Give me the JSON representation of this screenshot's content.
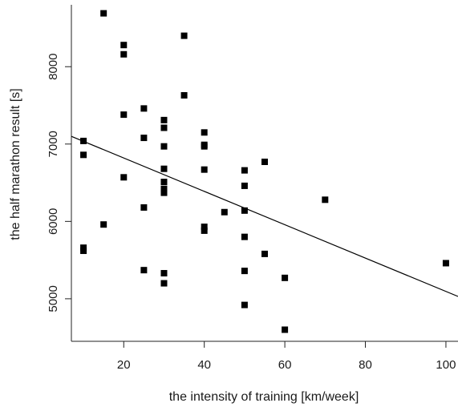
{
  "chart_data": {
    "type": "scatter",
    "title": "",
    "xlabel": "the intensity of training [km/week]",
    "ylabel": "the half marathon result [s]",
    "xlim": [
      7,
      103
    ],
    "ylim": [
      4450,
      8800
    ],
    "x_ticks": [
      20,
      40,
      60,
      80,
      100
    ],
    "y_ticks": [
      5000,
      6000,
      7000,
      8000
    ],
    "x_tick_labels": [
      "20",
      "40",
      "60",
      "80",
      "100"
    ],
    "y_tick_labels": [
      "5000",
      "6000",
      "7000",
      "8000"
    ],
    "marker": "square",
    "marker_color": "#000000",
    "grid": false,
    "points": [
      {
        "x": 10,
        "y": 7040
      },
      {
        "x": 10,
        "y": 6860
      },
      {
        "x": 10,
        "y": 5660
      },
      {
        "x": 10,
        "y": 5620
      },
      {
        "x": 15,
        "y": 8690
      },
      {
        "x": 15,
        "y": 5960
      },
      {
        "x": 20,
        "y": 8280
      },
      {
        "x": 20,
        "y": 8160
      },
      {
        "x": 20,
        "y": 7380
      },
      {
        "x": 20,
        "y": 6570
      },
      {
        "x": 25,
        "y": 7460
      },
      {
        "x": 25,
        "y": 7080
      },
      {
        "x": 25,
        "y": 6180
      },
      {
        "x": 25,
        "y": 5370
      },
      {
        "x": 30,
        "y": 7310
      },
      {
        "x": 30,
        "y": 7210
      },
      {
        "x": 30,
        "y": 6970
      },
      {
        "x": 30,
        "y": 6680
      },
      {
        "x": 30,
        "y": 6510
      },
      {
        "x": 30,
        "y": 6420
      },
      {
        "x": 30,
        "y": 6370
      },
      {
        "x": 30,
        "y": 5330
      },
      {
        "x": 30,
        "y": 5200
      },
      {
        "x": 35,
        "y": 8400
      },
      {
        "x": 35,
        "y": 7630
      },
      {
        "x": 40,
        "y": 7150
      },
      {
        "x": 40,
        "y": 6990
      },
      {
        "x": 40,
        "y": 6970
      },
      {
        "x": 40,
        "y": 6670
      },
      {
        "x": 40,
        "y": 5930
      },
      {
        "x": 40,
        "y": 5880
      },
      {
        "x": 45,
        "y": 6120
      },
      {
        "x": 50,
        "y": 6660
      },
      {
        "x": 50,
        "y": 6460
      },
      {
        "x": 50,
        "y": 6140
      },
      {
        "x": 50,
        "y": 5800
      },
      {
        "x": 50,
        "y": 5360
      },
      {
        "x": 50,
        "y": 4920
      },
      {
        "x": 55,
        "y": 6770
      },
      {
        "x": 55,
        "y": 5580
      },
      {
        "x": 60,
        "y": 5270
      },
      {
        "x": 60,
        "y": 4600
      },
      {
        "x": 70,
        "y": 6280
      },
      {
        "x": 100,
        "y": 5460
      }
    ],
    "regression_line": {
      "x": [
        7,
        103
      ],
      "y": [
        7100,
        5030
      ],
      "color": "#000000"
    }
  }
}
